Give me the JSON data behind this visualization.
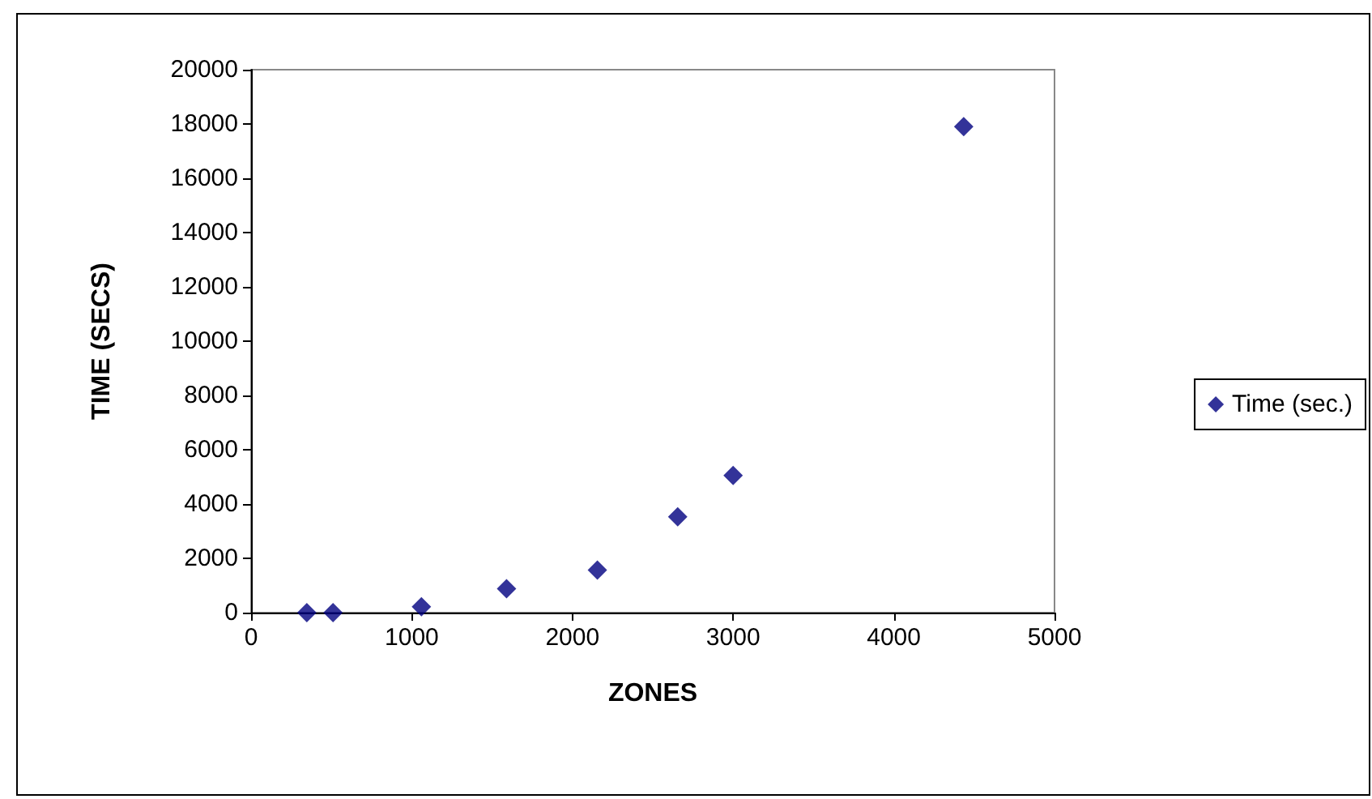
{
  "chart_data": {
    "type": "scatter",
    "xlabel": "ZONES",
    "ylabel": "TIME (SECS)",
    "x": [
      347,
      510,
      1060,
      1590,
      2155,
      2655,
      3000,
      4435
    ],
    "series": [
      {
        "name": "Time (sec.)",
        "color": "#000080",
        "values": [
          0,
          0,
          220,
          880,
          1570,
          3530,
          5050,
          17900
        ]
      }
    ],
    "xlim": [
      0,
      5000
    ],
    "xticks": [
      0,
      1000,
      2000,
      3000,
      4000,
      5000
    ],
    "ylim": [
      0,
      20000
    ],
    "yticks": [
      0,
      2000,
      4000,
      6000,
      8000,
      10000,
      12000,
      14000,
      16000,
      18000,
      20000
    ],
    "grid": false,
    "legend": "right",
    "marker": "diamond"
  }
}
